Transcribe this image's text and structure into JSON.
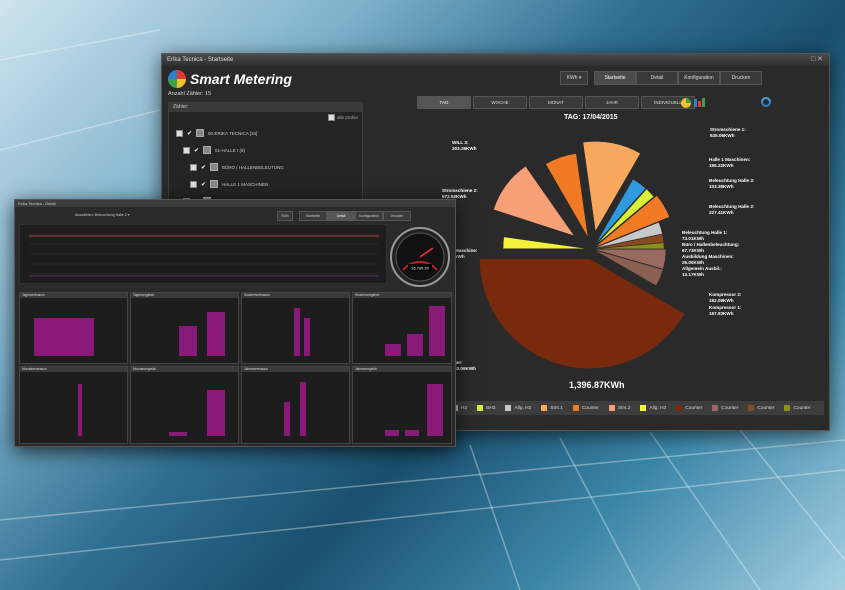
{
  "main_window": {
    "title": "Erika Tecnica - Startseite",
    "brand": "Smart Metering",
    "meter_count_label": "Anzahl Zähler:",
    "meter_count": "15",
    "unit_select": "KWh",
    "nav_buttons": [
      "Startseite",
      "Detail",
      "Konfiguration",
      "Drucken"
    ],
    "period_tabs": [
      "TAG",
      "WOCHE",
      "MONAT",
      "JAHR",
      "INDIVIDUELL"
    ],
    "meter_panel": {
      "header": "Zähler:",
      "select_all": "alle prüfen",
      "tree": [
        "00-ERIKA TECNICA [15]",
        "01-HALLE I (9)",
        "BÜRO / HALLENBELEUTUNG",
        "HALLE 1 MASCHINEN",
        "02-HALLE II (3)"
      ]
    },
    "chart_title": "TAG: 17/04/2015",
    "chart_total": "1,396.87KWh",
    "legend": [
      {
        "label": "H2",
        "color": "#c8c8c8"
      },
      {
        "label": "BH3",
        "color": "#d9f03a"
      },
      {
        "label": "Allg. H2",
        "color": "#c8c8c8"
      },
      {
        "label": "Strs.1",
        "color": "#f7a85c"
      },
      {
        "label": "Counter",
        "color": "#f07b24"
      },
      {
        "label": "Strs.2",
        "color": "#f7a078"
      },
      {
        "label": "Allg. H3",
        "color": "#f5f03a"
      },
      {
        "label": "Counter",
        "color": "#7a2a0c"
      },
      {
        "label": "Counter",
        "color": "#9a6a60"
      },
      {
        "label": "Counter",
        "color": "#8a4a20"
      },
      {
        "label": "Counter",
        "color": "#8e8e1a"
      }
    ],
    "pie_labels": [
      {
        "name": "Stromschiene 1:",
        "value": "635.06KWh"
      },
      {
        "name": "Halle 1 Maschinen:",
        "value": "195.22KWh"
      },
      {
        "name": "Beleuchtung Halle 3:",
        "value": "103.39KWh"
      },
      {
        "name": "Beleuchtung Halle 2:",
        "value": "227.41KWh"
      },
      {
        "name": "Beleuchtung Halle 1:",
        "value": "73.01KWh"
      },
      {
        "name": "Büro / Hallenbeleuchtung:",
        "value": "67.73KWh"
      },
      {
        "name": "Ausbildung Maschinen:",
        "value": "29.00KWh"
      },
      {
        "name": "Allgemein Ausbil.:",
        "value": "13.17KWh"
      },
      {
        "name": "Kompressor 2:",
        "value": "182.09KWh"
      },
      {
        "name": "Kompressor 1:",
        "value": "167.83KWh"
      },
      {
        "name": "WILL 3:",
        "value": "203.26KWh"
      },
      {
        "name": "Stromschiene 2:",
        "value": "572.92KWh"
      },
      {
        "name": "Maschine:",
        "value": "kWh"
      },
      {
        "name": "ger:",
        "value": "83.06KWh"
      }
    ],
    "pie_colors": [
      "#f7a85c",
      "#2f9ae0",
      "#d9f03a",
      "#f07b24",
      "#c8c8c8",
      "#8a4a20",
      "#9a6a60",
      "#8e8e1a",
      "#8a6050",
      "#7a2a0c",
      "#f07b24",
      "#f7a078",
      "#f5f03a"
    ]
  },
  "secondary_window": {
    "title": "Erika Tecnica - Detail",
    "selector_label": "Auswählen:",
    "selector_value": "Beleuchtung Halle 2",
    "buttons": [
      "KWh",
      "Startseite",
      "Detail",
      "Konfiguration",
      "Drucken"
    ],
    "gauge_value": "16,765.20",
    "panels": [
      "Tagesverbrauch",
      "Tagesvergleich",
      "Wochenverbrauch",
      "Wochenvergleich",
      "Monatsverbrauch",
      "Monatsvergleich",
      "Jahresverbrauch",
      "Jahresvergleich"
    ]
  }
}
